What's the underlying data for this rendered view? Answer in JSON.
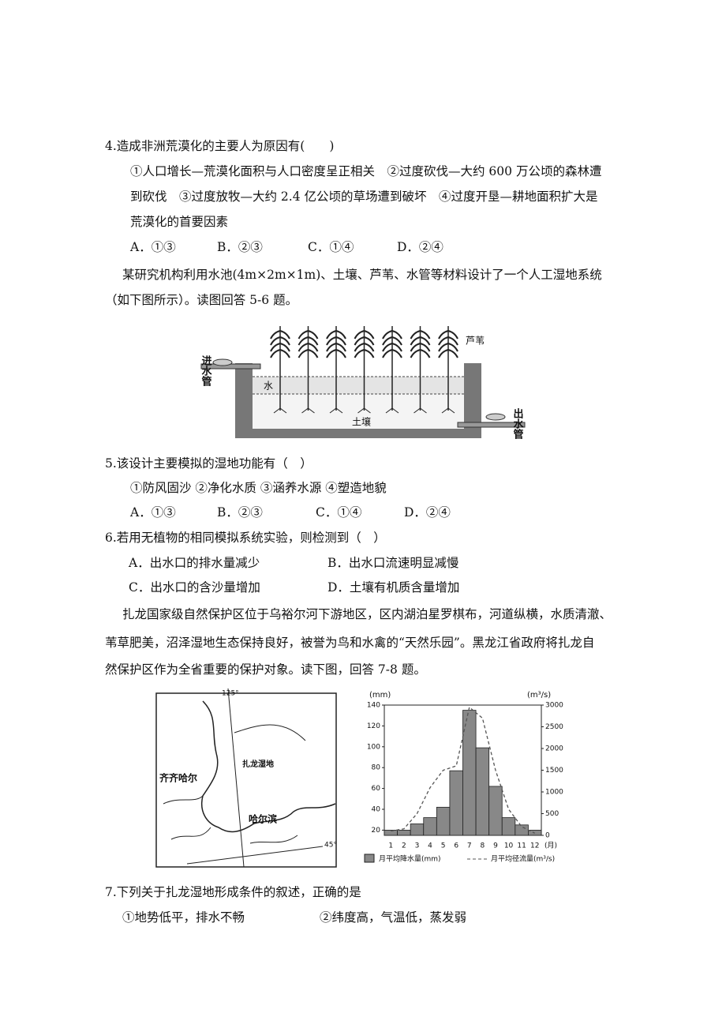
{
  "q4": {
    "stem": "4.造成非洲荒漠化的主要人为原因有(　　)",
    "text_lines": [
      "①人口增长—荒漠化面积与人口密度呈正相关　②过度砍伐—大约 600 万公顷的森林遭",
      "到砍伐　③过度放牧—大约 2.4 亿公顷的草场遭到破坏　④过度开垦—耕地面积扩大是",
      "荒漠化的首要因素"
    ],
    "options": [
      "A．①③",
      "B．②③",
      "C．①④",
      "D．②④"
    ]
  },
  "intro56": {
    "lines": [
      "某研究机构利用水池(4m×2m×1m)、土壤、芦苇、水管等材料设计了一个人工湿地系统",
      "（如下图所示）。读图回答 5-6 题。"
    ]
  },
  "figure1": {
    "inlet": "进水管",
    "outlet": "出水管",
    "reed": "芦苇",
    "water": "水",
    "soil": "土壤"
  },
  "q5": {
    "stem": "5.该设计主要模拟的湿地功能有（　）",
    "statements": "①防风固沙  ②净化水质  ③涵养水源  ④塑造地貌",
    "options": [
      "A．①③",
      "B．②③",
      "C．①④",
      "D．②④"
    ]
  },
  "q6": {
    "stem": "6.若用无植物的相同模拟系统实验，则检测到（　）",
    "options": [
      "A．出水口的排水量减少",
      "B．出水口流速明显减慢",
      "C．出水口的含沙量增加",
      "D．土壤有机质含量增加"
    ]
  },
  "intro78": {
    "lines": [
      "扎龙国家级自然保护区位于乌裕尔河下游地区，区内湖泊星罗棋布，河道纵横，水质清澈、",
      "苇草肥美，沼泽湿地生态保持良好，被誉为鸟和水禽的“天然乐园”。黑龙江省政府将扎龙自",
      "然保护区作为全省重要的保护对象。读下图，回答 7-8 题。"
    ]
  },
  "figure2": {
    "map": {
      "longitude": "125°",
      "latitude": "45°",
      "city1": "齐齐哈尔",
      "wetland": "扎龙湿地",
      "city2": "哈尔滨"
    },
    "chart": {
      "type": "bar-line",
      "y_unit": "(mm)",
      "y2_unit": "(m³/s)",
      "x_unit": "(月)",
      "categories": [
        "1",
        "2",
        "3",
        "4",
        "5",
        "6",
        "7",
        "8",
        "9",
        "10",
        "11",
        "12"
      ],
      "series": [
        {
          "name": "月平均降水量(mm)",
          "color": "#888888",
          "values": [
            20,
            20,
            26,
            32,
            42,
            77,
            135,
            99,
            62,
            32,
            25,
            20
          ]
        },
        {
          "name": "月平均径流量(m³/s)",
          "color": "#555555",
          "axis": "y2",
          "values": [
            100,
            150,
            500,
            1100,
            1500,
            1600,
            2950,
            2700,
            1500,
            600,
            200,
            50
          ]
        }
      ],
      "ylim": [
        15,
        140
      ],
      "yticks": [
        20,
        40,
        60,
        80,
        100,
        120,
        140
      ],
      "y2lim": [
        0,
        3000
      ],
      "y2ticks": [
        0,
        500,
        1000,
        1500,
        2000,
        2500,
        3000
      ]
    }
  },
  "q7": {
    "stem": "7.下列关于扎龙湿地形成条件的叙述，正确的是",
    "statements": [
      "①地势低平，排水不畅",
      "②纬度高，气温低，蒸发弱"
    ]
  }
}
